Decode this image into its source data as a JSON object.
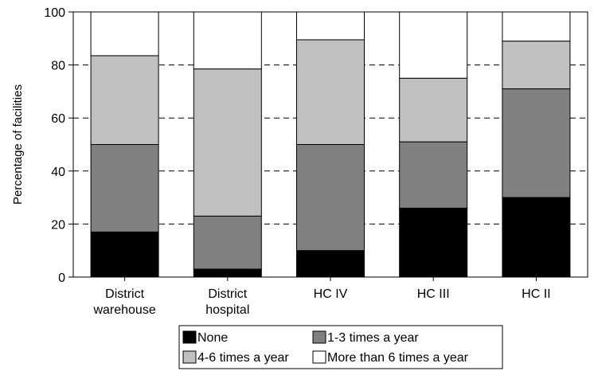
{
  "chart_data": {
    "type": "bar",
    "stacked": true,
    "title": "",
    "xlabel": "",
    "ylabel": "Percentage of facilities",
    "ylim": [
      0,
      100
    ],
    "yticks": [
      0,
      20,
      40,
      60,
      80,
      100
    ],
    "grid": "dashed horizontal",
    "legend_position": "bottom",
    "categories": [
      [
        "District",
        "warehouse"
      ],
      [
        "District",
        "hospital"
      ],
      [
        "HC IV"
      ],
      [
        "HC III"
      ],
      [
        "HC II"
      ]
    ],
    "series": [
      {
        "name": "None",
        "color": "#000000",
        "values": [
          17,
          3,
          10,
          26,
          30
        ]
      },
      {
        "name": "1-3 times a year",
        "color": "#808080",
        "values": [
          33,
          20,
          40,
          25,
          41
        ]
      },
      {
        "name": "4-6 times a year",
        "color": "#c0c0c0",
        "values": [
          33.5,
          55.5,
          39.5,
          24,
          18
        ]
      },
      {
        "name": "More than 6 times a year",
        "color": "#ffffff",
        "values": [
          16.5,
          21.5,
          10.5,
          25,
          11
        ]
      }
    ]
  }
}
